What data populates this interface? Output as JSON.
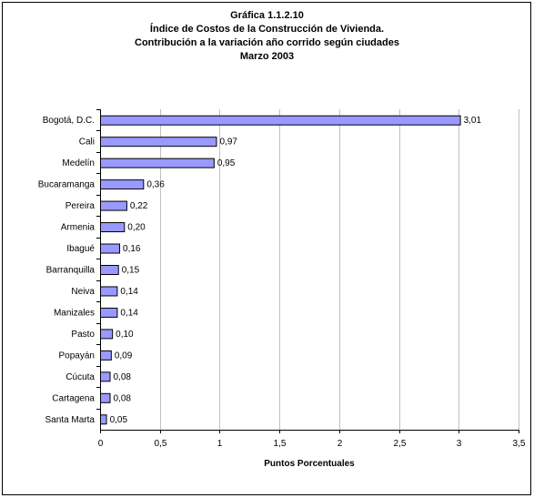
{
  "chart_data": {
    "type": "bar",
    "orientation": "horizontal",
    "title_lines": [
      "Gráfica 1.1.2.10",
      "Índice de Costos de  la Construcción de Vivienda.",
      "Contribución a la variación año corrido  según ciudades",
      "Marzo 2003"
    ],
    "categories": [
      "Bogotá, D.C.",
      "Cali",
      "Medelín",
      "Bucaramanga",
      "Pereira",
      "Armenia",
      "Ibagué",
      "Barranquilla",
      "Neiva",
      "Manizales",
      "Pasto",
      "Popayán",
      "Cúcuta",
      "Cartagena",
      "Santa Marta"
    ],
    "values": [
      3.01,
      0.97,
      0.95,
      0.36,
      0.22,
      0.2,
      0.16,
      0.15,
      0.14,
      0.14,
      0.1,
      0.09,
      0.08,
      0.08,
      0.05
    ],
    "value_labels": [
      "3,01",
      "0,97",
      "0,95",
      "0,36",
      "0,22",
      "0,20",
      "0,16",
      "0,15",
      "0,14",
      "0,14",
      "0,10",
      "0,09",
      "0,08",
      "0,08",
      "0,05"
    ],
    "xlabel": "Puntos Porcentuales",
    "xlim": [
      0,
      3.5
    ],
    "xticks": [
      0,
      0.5,
      1,
      1.5,
      2,
      2.5,
      3,
      3.5
    ],
    "xtick_labels": [
      "0",
      "0,5",
      "1",
      "1,5",
      "2",
      "2,5",
      "3",
      "3,5"
    ],
    "grid": "vertical",
    "bar_color": "#9999ff",
    "bar_edge_color": "#000000",
    "grid_color": "#c0c0c0"
  }
}
